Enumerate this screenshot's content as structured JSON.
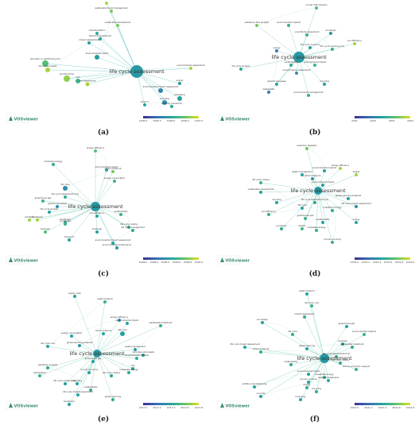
{
  "brand": "VOSviewer",
  "colors": {
    "edge_a": "#48b4b8",
    "edge": "#5cc0a8",
    "scale": [
      "#3b2f8f",
      "#3b6fb3",
      "#23a3a0",
      "#5fc36b",
      "#d9df1f"
    ]
  },
  "panels": [
    {
      "id": "a",
      "caption": "(a)",
      "legend_ticks": [
        "1995.0",
        "1995.5",
        "1996.0",
        "1996.5",
        "1997.0"
      ],
      "labels": [
        "life cycle assessment",
        "environmental impact",
        "materials choice",
        "sustainable forest management",
        "sustainable development",
        "characterization",
        "temporal assessment",
        "impact assessment",
        "allocation or partitioning arm",
        "life cycle analysis",
        "bounded time",
        "risk assessment",
        "environmental assessment",
        "environmental impact assessment",
        "recycling",
        "packaging",
        "pollution prevention",
        "energy",
        "decision",
        "LCA"
      ]
    },
    {
      "id": "b",
      "caption": "(b)",
      "legend_ticks": [
        "2001",
        "2002",
        "2003",
        "2004"
      ],
      "labels": [
        "life cycle assessment",
        "co-fuel CO2 emission",
        "environmental impacts",
        "substance flow analysis",
        "uncertainty assessment",
        "life cycle inventory",
        "life cycle inventory (lci)",
        "ecodesign",
        "life cycle analysis",
        "environmental assessment",
        "greenhouse gases",
        "environmental management",
        "sustainability",
        "wastewater",
        "recycling",
        "energy",
        "environmental impact",
        "eco-efficiency"
      ]
    },
    {
      "id": "c",
      "caption": "(c)",
      "legend_ticks": [
        "2008.0",
        "2008.2",
        "2008.4",
        "2008.6",
        "2008.8",
        "2009.0"
      ],
      "labels": [
        "life cycle assessment",
        "energy efficiency",
        "embodied energy",
        "environmental impact",
        "carbon footprint",
        "energy consumption",
        "life cycle",
        "greenhouse gas",
        "life cycle analysis",
        "biodiesel",
        "bioethanol",
        "biorefinery",
        "greenhouse gases",
        "sustainability",
        "eco-efficiency",
        "life cycle costing",
        "life cycle management",
        "ecodesign",
        "environmental impact assessment",
        "environmental performance",
        "transport",
        "buildings",
        "hydrogen",
        "life cycle assessment (lca)"
      ]
    },
    {
      "id": "d",
      "caption": "(d)",
      "legend_ticks": [
        "2015.0",
        "2015.2",
        "2015.4",
        "2015.6",
        "2015.8",
        "2016.0"
      ],
      "labels": [
        "life cycle assessment",
        "anaerobic digestion",
        "life cycle assessment (lca)",
        "environmental impacts",
        "environmental impact",
        "sustainability",
        "waste management",
        "life cycle costing",
        "life cycle",
        "greenhouse gas",
        "global warming potential",
        "carbon footprint",
        "renewable energy",
        "life cycle impact assessment",
        "recycling",
        "eco-efficiency",
        "ecodesign",
        "energy",
        "biofuel",
        "industrial ecology",
        "sustainable development",
        "circular economy",
        "energy efficiency",
        "biogas"
      ]
    },
    {
      "id": "e",
      "caption": "(e)",
      "legend_ticks": [
        "2017.0",
        "2017.2",
        "2017.4",
        "2017.6",
        "2017.8"
      ],
      "labels": [
        "life cycle assessment",
        "water footprint",
        "supply chain",
        "life cycle cost",
        "energy consumption",
        "environmental impact",
        "energy efficiency",
        "carbon footprint",
        "life cycle",
        "global warming potential",
        "greenhouse gas",
        "waste management",
        "municipal solid waste",
        "wastewater treatment",
        "environmental impacts",
        "life cycle costing",
        "sensitivity analysis",
        "life cycle sustainability",
        "sustainability",
        "life cycle impact assessment",
        "global warming",
        "biorefinery",
        "renewable energy",
        "optimization",
        "LCA",
        "circular economy",
        "recycling"
      ]
    },
    {
      "id": "f",
      "caption": "(f)",
      "legend_ticks": [
        "2021.0",
        "2021.2",
        "2021.4",
        "2021.6",
        "2021.8"
      ],
      "labels": [
        "life cycle assessment",
        "water footprint",
        "life cycle cost",
        "impact assessment",
        "eco-design",
        "greenhouse gas",
        "life cycle",
        "global warming",
        "hydrogen",
        "wastewater treatment",
        "life cycle assessment (lca)",
        "life cycle impact assessment",
        "carbon footprint",
        "life cycle costing",
        "sustainability",
        "techno-economic analysis",
        "environmental impact",
        "renewable energy",
        "additive manufacturing",
        "concrete",
        "circular economy",
        "waste management",
        "bioenergy",
        "energy",
        "environmental impacts",
        "recycling"
      ]
    }
  ]
}
